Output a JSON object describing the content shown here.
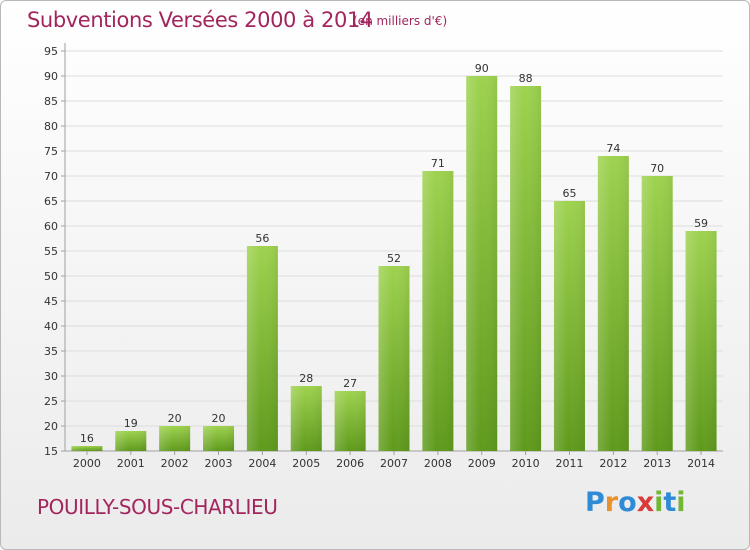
{
  "header": {
    "title": "Subventions Versées 2000 à 2014",
    "unit": "(en milliers d'€)"
  },
  "commune": "POUILLY-SOUS-CHARLIEU",
  "logo": {
    "text": "Proxiti"
  },
  "colors": {
    "title": "#a3255e",
    "bar_top": "#9ed24f",
    "bar_bottom": "#5f9a1c",
    "axis": "#a0a0a0",
    "grid": "#dddddd",
    "label": "#333333"
  },
  "chart_data": {
    "type": "bar",
    "title": "Subventions Versées 2000 à 2014",
    "subtitle": "(en milliers d'€)",
    "xlabel": "",
    "ylabel": "",
    "categories": [
      "2000",
      "2001",
      "2002",
      "2003",
      "2004",
      "2005",
      "2006",
      "2007",
      "2008",
      "2009",
      "2010",
      "2011",
      "2012",
      "2013",
      "2014"
    ],
    "values": [
      16,
      19,
      20,
      20,
      56,
      28,
      27,
      52,
      71,
      90,
      88,
      65,
      74,
      70,
      59
    ],
    "ylim": [
      15,
      95
    ],
    "yticks": [
      15,
      20,
      25,
      30,
      35,
      40,
      45,
      50,
      55,
      60,
      65,
      70,
      75,
      80,
      85,
      90,
      95
    ],
    "grid": true,
    "legend": "none",
    "data_labels": true
  }
}
